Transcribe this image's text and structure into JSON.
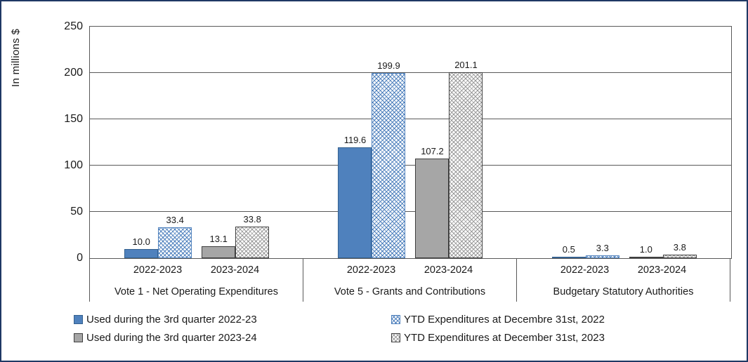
{
  "chart_data": {
    "type": "bar",
    "title": "",
    "ylabel": "In millions $",
    "ylim": [
      0,
      250
    ],
    "yticks": [
      0,
      50,
      100,
      150,
      200,
      250
    ],
    "grid": true,
    "legend_position": "bottom",
    "series": [
      {
        "name": "Used during the 3rd quarter 2022-23",
        "style": "solid-blue",
        "color": "#4f81bd",
        "values": [
          10.0,
          119.6,
          0.5
        ]
      },
      {
        "name": "YTD Expenditures at Decembre 31st, 2022",
        "style": "hatch-blue",
        "color": "#4f81bd",
        "values": [
          33.4,
          199.9,
          3.3
        ]
      },
      {
        "name": "Used during the 3rd quarter 2023-24",
        "style": "solid-gray",
        "color": "#a6a6a6",
        "values": [
          13.1,
          107.2,
          1.0
        ]
      },
      {
        "name": "YTD Expenditures at December 31st, 2023",
        "style": "hatch-gray",
        "color": "#9a9a9a",
        "values": [
          33.8,
          201.1,
          3.8
        ]
      }
    ],
    "groups": [
      {
        "label": "Vote 1 - Net Operating Expenditures",
        "clusters": [
          {
            "label": "2022-2023",
            "bars": [
              {
                "series": 0,
                "value": "10.0"
              },
              {
                "series": 1,
                "value": "33.4"
              }
            ]
          },
          {
            "label": "2023-2024",
            "bars": [
              {
                "series": 2,
                "value": "13.1"
              },
              {
                "series": 3,
                "value": "33.8"
              }
            ]
          }
        ]
      },
      {
        "label": "Vote  5 - Grants and Contributions",
        "clusters": [
          {
            "label": "2022-2023",
            "bars": [
              {
                "series": 0,
                "value": "119.6"
              },
              {
                "series": 1,
                "value": "199.9"
              }
            ]
          },
          {
            "label": "2023-2024",
            "bars": [
              {
                "series": 2,
                "value": "107.2"
              },
              {
                "series": 3,
                "value": "201.1"
              }
            ]
          }
        ]
      },
      {
        "label": "Budgetary Statutory Authorities",
        "clusters": [
          {
            "label": "2022-2023",
            "bars": [
              {
                "series": 0,
                "value": "0.5"
              },
              {
                "series": 1,
                "value": "3.3"
              }
            ]
          },
          {
            "label": "2023-2024",
            "bars": [
              {
                "series": 2,
                "value": "1.0"
              },
              {
                "series": 3,
                "value": "3.8"
              }
            ]
          }
        ]
      }
    ],
    "colors": {
      "solid_blue": "#4f81bd",
      "solid_gray": "#a6a6a6",
      "hatch_blue_line": "#4f81bd",
      "hatch_gray_line": "#9a9a9a",
      "axis_line": "#595959",
      "frame_border": "#1f3864"
    }
  }
}
